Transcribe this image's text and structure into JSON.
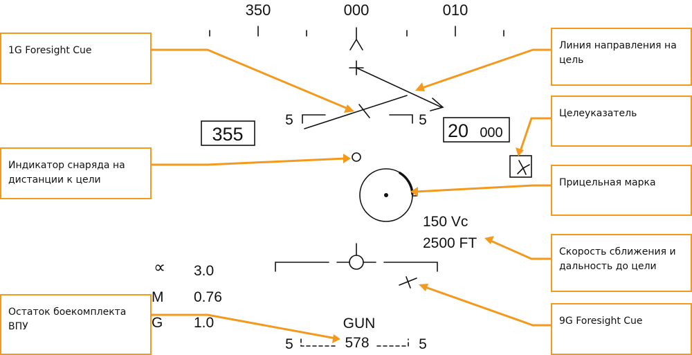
{
  "hud": {
    "heading_scale": [
      "350",
      "000",
      "010"
    ],
    "heading_value": "355",
    "altitude_major": "20",
    "altitude_minor": "000",
    "pitch_ladder_left": "5",
    "pitch_ladder_right": "5",
    "closure_rate": "150 Vc",
    "target_range": "2500 FT",
    "alpha_symbol": "∝",
    "alpha_value": "3.0",
    "mach_label": "M",
    "mach_value": "0.76",
    "g_label": "G",
    "g_value": "1.0",
    "weapon": "GUN",
    "rounds": "578",
    "bottom_left": "5",
    "bottom_right": "5"
  },
  "callouts": {
    "foresight_1g": "1G Foresight Cue",
    "target_line": "Линия направления на цель",
    "target_designator": "Целеуказатель",
    "bullet_indicator": "Индикатор снаряда на дистанции к цели",
    "aiming_reticle": "Прицельная марка",
    "closure_range": "Скорость сближения и дальность до цели",
    "ammo_remaining": "Остаток боекомплекта ВПУ",
    "foresight_9g": "9G Foresight Cue"
  },
  "colors": {
    "callout_orange": "#f39a1e",
    "hud_ink": "#111111"
  }
}
